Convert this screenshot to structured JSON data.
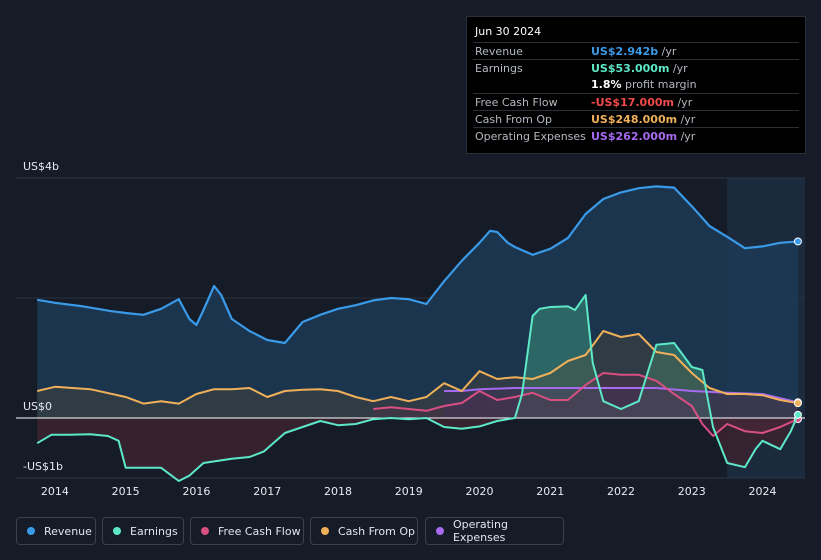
{
  "tooltip": {
    "date": "Jun 30 2024",
    "rows": [
      {
        "label": "Revenue",
        "value": "US$2.942b",
        "unit": " /yr",
        "color": "#3a9ae8"
      },
      {
        "label": "Earnings",
        "value": "US$53.000m",
        "unit": " /yr",
        "color": "#5de8c8"
      },
      {
        "label": "",
        "value": "1.8%",
        "unit": " profit margin",
        "color": "#ffffff"
      },
      {
        "label": "Free Cash Flow",
        "value": "-US$17.000m",
        "unit": " /yr",
        "color": "#f04a4a"
      },
      {
        "label": "Cash From Op",
        "value": "US$248.000m",
        "unit": " /yr",
        "color": "#f0b05a"
      },
      {
        "label": "Operating Expenses",
        "value": "US$262.000m",
        "unit": " /yr",
        "color": "#a56af0"
      }
    ]
  },
  "colors": {
    "background": "#151c28",
    "revenue": "#3a9ae8",
    "earnings": "#5de8c8",
    "fcf": "#d94f82",
    "cfo": "#f0b05a",
    "opex": "#a56af0"
  },
  "chart_data": {
    "type": "line",
    "title": "",
    "ylabel": "",
    "ylim": [
      -1,
      4
    ],
    "y_ticks": [
      {
        "value": 4,
        "label": "US$4b"
      },
      {
        "value": 0,
        "label": "US$0"
      },
      {
        "value": -1,
        "label": "-US$1b"
      }
    ],
    "xlim": [
      2013.45,
      2024.6
    ],
    "x_ticks": [
      "2014",
      "2015",
      "2016",
      "2017",
      "2018",
      "2019",
      "2020",
      "2021",
      "2022",
      "2023",
      "2024"
    ],
    "highlight_from": 2023.5,
    "series": [
      {
        "name": "Revenue",
        "key": "revenue",
        "x": [
          2013.75,
          2014.0,
          2014.4,
          2014.8,
          2015.0,
          2015.25,
          2015.5,
          2015.75,
          2015.9,
          2016.0,
          2016.1,
          2016.25,
          2016.35,
          2016.5,
          2016.75,
          2017.0,
          2017.25,
          2017.5,
          2017.75,
          2018.0,
          2018.25,
          2018.5,
          2018.75,
          2019.0,
          2019.25,
          2019.5,
          2019.75,
          2020.0,
          2020.15,
          2020.25,
          2020.4,
          2020.5,
          2020.75,
          2021.0,
          2021.25,
          2021.5,
          2021.75,
          2022.0,
          2022.25,
          2022.5,
          2022.75,
          2023.0,
          2023.25,
          2023.5,
          2023.75,
          2024.0,
          2024.25,
          2024.5
        ],
        "y": [
          1.97,
          1.92,
          1.86,
          1.78,
          1.75,
          1.72,
          1.82,
          1.98,
          1.65,
          1.55,
          1.8,
          2.2,
          2.05,
          1.65,
          1.45,
          1.3,
          1.25,
          1.6,
          1.72,
          1.82,
          1.88,
          1.96,
          2.0,
          1.98,
          1.9,
          2.28,
          2.62,
          2.92,
          3.12,
          3.1,
          2.92,
          2.85,
          2.72,
          2.82,
          3.0,
          3.4,
          3.65,
          3.76,
          3.83,
          3.86,
          3.84,
          3.53,
          3.2,
          3.02,
          2.83,
          2.86,
          2.92,
          2.942
        ]
      },
      {
        "name": "Earnings",
        "key": "earnings",
        "x": [
          2013.75,
          2013.95,
          2014.2,
          2014.5,
          2014.75,
          2014.9,
          2015.0,
          2015.2,
          2015.5,
          2015.75,
          2015.9,
          2016.1,
          2016.5,
          2016.75,
          2016.95,
          2017.25,
          2017.5,
          2017.75,
          2018.0,
          2018.25,
          2018.5,
          2018.75,
          2019.0,
          2019.25,
          2019.5,
          2019.75,
          2020.0,
          2020.25,
          2020.5,
          2020.6,
          2020.75,
          2020.85,
          2021.0,
          2021.25,
          2021.35,
          2021.5,
          2021.6,
          2021.75,
          2022.0,
          2022.25,
          2022.5,
          2022.75,
          2023.0,
          2023.15,
          2023.3,
          2023.5,
          2023.75,
          2023.9,
          2024.0,
          2024.25,
          2024.4,
          2024.5
        ],
        "y": [
          -0.42,
          -0.28,
          -0.28,
          -0.27,
          -0.3,
          -0.38,
          -0.83,
          -0.83,
          -0.83,
          -1.05,
          -0.96,
          -0.75,
          -0.68,
          -0.65,
          -0.56,
          -0.25,
          -0.15,
          -0.05,
          -0.12,
          -0.1,
          -0.02,
          0.0,
          -0.02,
          0.0,
          -0.15,
          -0.18,
          -0.14,
          -0.05,
          0.0,
          0.4,
          1.7,
          1.82,
          1.85,
          1.86,
          1.8,
          2.05,
          0.92,
          0.28,
          0.15,
          0.28,
          1.22,
          1.25,
          0.85,
          0.8,
          -0.15,
          -0.75,
          -0.82,
          -0.52,
          -0.38,
          -0.52,
          -0.22,
          0.053
        ]
      },
      {
        "name": "Free Cash Flow",
        "key": "fcf",
        "x": [
          2018.5,
          2018.75,
          2019.0,
          2019.25,
          2019.5,
          2019.75,
          2020.0,
          2020.25,
          2020.5,
          2020.75,
          2021.0,
          2021.25,
          2021.5,
          2021.75,
          2022.0,
          2022.25,
          2022.5,
          2022.75,
          2023.0,
          2023.15,
          2023.3,
          2023.5,
          2023.75,
          2024.0,
          2024.25,
          2024.5
        ],
        "y": [
          0.15,
          0.18,
          0.15,
          0.12,
          0.2,
          0.25,
          0.45,
          0.3,
          0.35,
          0.42,
          0.3,
          0.3,
          0.55,
          0.75,
          0.72,
          0.72,
          0.62,
          0.4,
          0.2,
          -0.1,
          -0.3,
          -0.1,
          -0.22,
          -0.25,
          -0.15,
          -0.017
        ]
      },
      {
        "name": "Cash From Op",
        "key": "cfo",
        "x": [
          2013.75,
          2014.0,
          2014.5,
          2015.0,
          2015.25,
          2015.5,
          2015.75,
          2016.0,
          2016.25,
          2016.5,
          2016.75,
          2017.0,
          2017.25,
          2017.5,
          2017.75,
          2018.0,
          2018.25,
          2018.5,
          2018.75,
          2019.0,
          2019.25,
          2019.5,
          2019.75,
          2020.0,
          2020.25,
          2020.5,
          2020.75,
          2021.0,
          2021.25,
          2021.5,
          2021.75,
          2022.0,
          2022.25,
          2022.5,
          2022.75,
          2023.0,
          2023.25,
          2023.5,
          2023.75,
          2024.0,
          2024.25,
          2024.5
        ],
        "y": [
          0.45,
          0.52,
          0.48,
          0.35,
          0.24,
          0.28,
          0.24,
          0.4,
          0.48,
          0.48,
          0.5,
          0.35,
          0.45,
          0.47,
          0.48,
          0.45,
          0.35,
          0.28,
          0.35,
          0.28,
          0.35,
          0.58,
          0.45,
          0.78,
          0.65,
          0.68,
          0.65,
          0.75,
          0.95,
          1.05,
          1.45,
          1.35,
          1.4,
          1.1,
          1.05,
          0.75,
          0.5,
          0.4,
          0.4,
          0.38,
          0.3,
          0.248
        ]
      },
      {
        "name": "Operating Expenses",
        "key": "opex",
        "x": [
          2019.5,
          2019.75,
          2020.0,
          2020.5,
          2021.0,
          2021.5,
          2022.0,
          2022.5,
          2023.0,
          2023.5,
          2024.0,
          2024.5
        ],
        "y": [
          0.45,
          0.45,
          0.48,
          0.5,
          0.5,
          0.5,
          0.5,
          0.5,
          0.45,
          0.42,
          0.4,
          0.262
        ]
      }
    ]
  },
  "legend": [
    {
      "label": "Revenue",
      "key": "revenue"
    },
    {
      "label": "Earnings",
      "key": "earnings"
    },
    {
      "label": "Free Cash Flow",
      "key": "fcf"
    },
    {
      "label": "Cash From Op",
      "key": "cfo"
    },
    {
      "label": "Operating Expenses",
      "key": "opex"
    }
  ]
}
